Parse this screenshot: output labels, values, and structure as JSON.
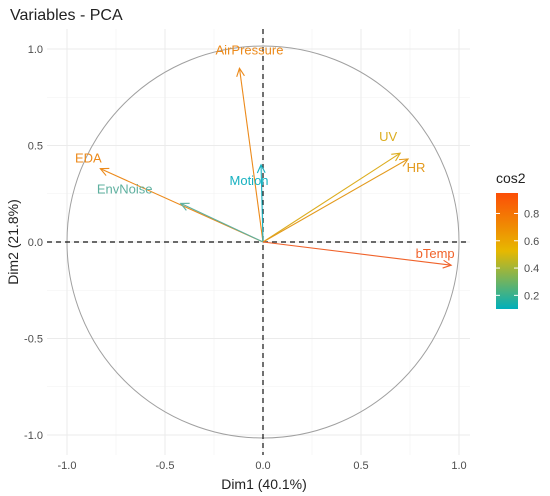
{
  "chart_data": {
    "type": "scatter",
    "subtype": "pca-variable-correlation-circle",
    "title": "Variables - PCA",
    "xlabel": "Dim1 (40.1%)",
    "ylabel": "Dim2 (21.8%)",
    "xlim": [
      -1.1,
      1.1
    ],
    "ylim": [
      -1.1,
      1.1
    ],
    "x_ticks": [
      -1.0,
      -0.5,
      0.0,
      0.5,
      1.0
    ],
    "y_ticks": [
      -1.0,
      -0.5,
      0.0,
      0.5,
      1.0
    ],
    "x_tick_labels": [
      "-1.0",
      "-0.5",
      "0.0",
      "0.5",
      "1.0"
    ],
    "y_tick_labels": [
      "-1.0",
      "-0.5",
      "0.0",
      "0.5",
      "1.0"
    ],
    "grid": true,
    "unit_circle": true,
    "color_by": "cos2",
    "variables": [
      {
        "name": "AirPressure",
        "x": -0.12,
        "y": 0.9,
        "cos2": 0.82,
        "color": "#ec8a1b"
      },
      {
        "name": "EDA",
        "x": -0.83,
        "y": 0.38,
        "cos2": 0.83,
        "color": "#ec8a1b"
      },
      {
        "name": "Motion",
        "x": -0.01,
        "y": 0.4,
        "cos2": 0.16,
        "color": "#17b1c0"
      },
      {
        "name": "EnvNoise",
        "x": -0.42,
        "y": 0.2,
        "cos2": 0.22,
        "color": "#5eb09f"
      },
      {
        "name": "UV",
        "x": 0.7,
        "y": 0.46,
        "cos2": 0.7,
        "color": "#dcad1f"
      },
      {
        "name": "HR",
        "x": 0.74,
        "y": 0.43,
        "cos2": 0.73,
        "color": "#e39a1d"
      },
      {
        "name": "bTemp",
        "x": 0.96,
        "y": -0.12,
        "cos2": 0.93,
        "color": "#f0622a"
      }
    ],
    "legend": {
      "title": "cos2",
      "placement": "right",
      "range": [
        0.1,
        0.95
      ],
      "ticks": [
        0.2,
        0.4,
        0.6,
        0.8
      ],
      "tick_labels": [
        "0.2",
        "0.4",
        "0.6",
        "0.8"
      ],
      "gradient_colors": [
        "#00afbb",
        "#e7b800",
        "#fc4e07"
      ]
    }
  }
}
